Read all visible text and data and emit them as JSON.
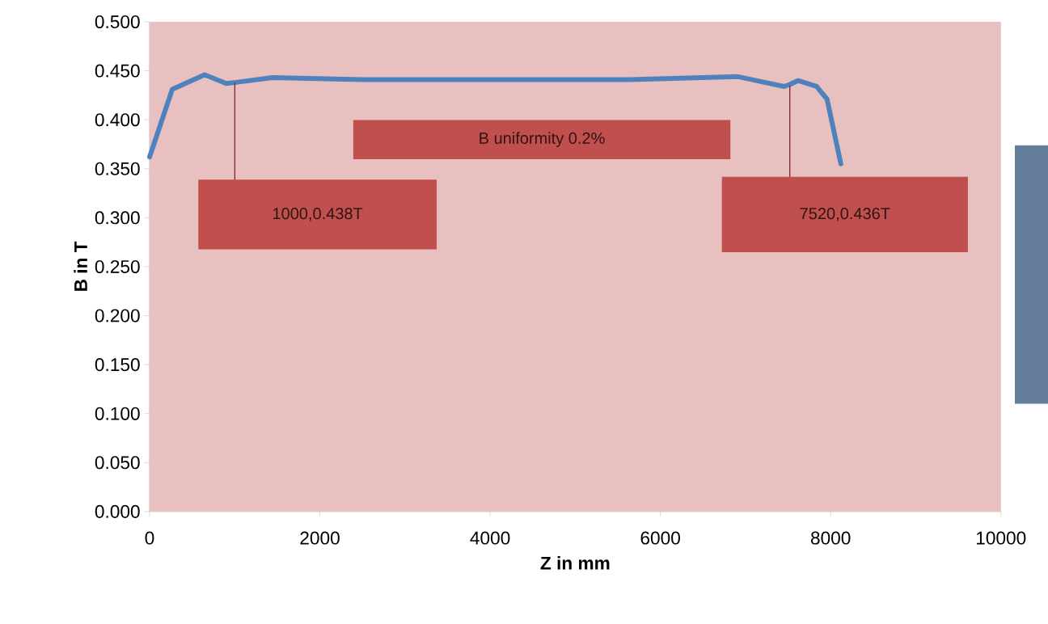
{
  "chart_data": {
    "type": "line",
    "xlabel": "Z in mm",
    "ylabel": "B in T",
    "x": [
      0,
      266,
      646,
      900,
      1000,
      1440,
      2500,
      4000,
      5650,
      6913,
      7236,
      7455,
      7520,
      7616,
      7835,
      7958,
      8120
    ],
    "series": [
      {
        "color": "#4f81bd",
        "values": [
          0.362,
          0.431,
          0.446,
          0.437,
          0.438,
          0.443,
          0.441,
          0.441,
          0.441,
          0.444,
          0.438,
          0.434,
          0.436,
          0.44,
          0.434,
          0.421,
          0.355
        ]
      }
    ],
    "xlim": [
      0,
      10000
    ],
    "ylim": [
      0,
      0.5
    ],
    "xticks": [
      0,
      2000,
      4000,
      6000,
      8000,
      10000
    ],
    "yticks": [
      {
        "value": 0,
        "label": "0.000"
      },
      {
        "value": 0.05,
        "label": "0.050"
      },
      {
        "value": 0.1,
        "label": "0.100"
      },
      {
        "value": 0.15,
        "label": "0.150"
      },
      {
        "value": 0.2,
        "label": "0.200"
      },
      {
        "value": 0.25,
        "label": "0.250"
      },
      {
        "value": 0.3,
        "label": "0.300"
      },
      {
        "value": 0.35,
        "label": "0.350"
      },
      {
        "value": 0.4,
        "label": "0.400"
      },
      {
        "value": 0.45,
        "label": "0.450"
      },
      {
        "value": 0.5,
        "label": "0.500"
      }
    ],
    "annotations": [
      "1000,0.438T",
      "B uniformity 0.2%",
      "7520,0.436T"
    ],
    "grid": false,
    "marker": "none",
    "line_style": "solid"
  }
}
